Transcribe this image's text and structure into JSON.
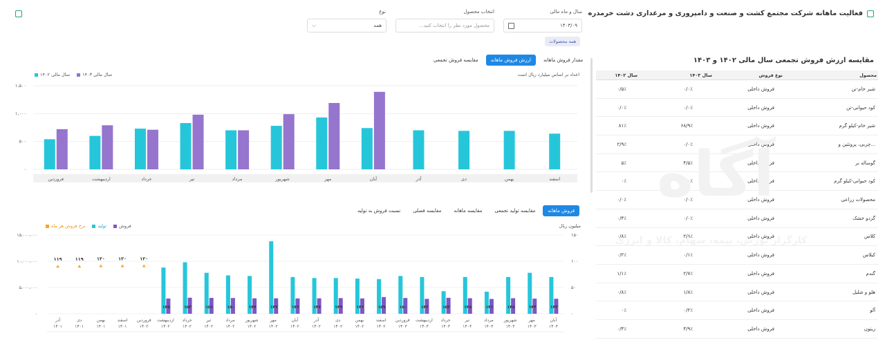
{
  "header": {
    "title": "فعالیت ماهانه شرکت مجتمع کشت و صنعت و دامپروری و مرغداری دشت خرمدره"
  },
  "filters": {
    "year_month_label": "سال و ماه مالی",
    "year_month_value": "۱۴۰۳/۰۹",
    "product_label": "انتخاب محصول",
    "product_placeholder": "محصول مورد نظر را انتخاب کنید...",
    "type_label": "نوع",
    "type_value": "همه",
    "all_products_label": "همه محصولات"
  },
  "top_chart": {
    "tabs": [
      "مقدار فروش ماهانه",
      "ارزش فروش ماهانه",
      "مقایسه فروش تجمعی"
    ],
    "active_tab": 1,
    "subtitle": "اعداد بر اساس میلیارد ریال است",
    "legend": [
      {
        "name": "سال مالی ۱۴۰۳",
        "color": "#9575cd"
      },
      {
        "name": "سال مالی ۱۴۰۲",
        "color": "#26c6da"
      }
    ],
    "y_ticks": [
      "۱،۵۰۰",
      "۱،۰۰۰",
      "۵۰۰",
      "۰"
    ]
  },
  "chart_data": [
    {
      "type": "bar",
      "categories": [
        "اسفند",
        "بهمن",
        "دی",
        "آذر",
        "آبان",
        "مهر",
        "شهریور",
        "مرداد",
        "تیر",
        "خرداد",
        "اردیبهشت",
        "فروردین"
      ],
      "series": [
        {
          "name": "سال مالی ۱۴۰۲",
          "values": [
            640,
            690,
            690,
            700,
            740,
            930,
            780,
            700,
            830,
            730,
            600,
            540
          ]
        },
        {
          "name": "سال مالی ۱۴۰۳",
          "values": [
            null,
            null,
            null,
            null,
            1390,
            1190,
            990,
            700,
            980,
            710,
            790,
            720
          ]
        }
      ],
      "ylim": [
        0,
        1500
      ]
    },
    {
      "type": "bar",
      "categories": [
        "آذر ۱۴۰۱",
        "دی ۱۴۰۱",
        "بهمن ۱۴۰۱",
        "اسفند ۱۴۰۱",
        "فروردین ۱۴۰۲",
        "اردیبهشت ۱۴۰۲",
        "خرداد ۱۴۰۲",
        "تیر ۱۴۰۲",
        "مرداد ۱۴۰۲",
        "شهریور ۱۴۰۲",
        "مهر ۱۴۰۲",
        "آبان ۱۴۰۲",
        "آذر ۱۴۰۲",
        "دی ۱۴۰۲",
        "بهمن ۱۴۰۲",
        "اسفند ۱۴۰۲",
        "فروردین ۱۴۰۳",
        "اردیبهشت ۱۴۰۳",
        "خرداد ۱۴۰۳",
        "تیر ۱۴۰۳",
        "مرداد ۱۴۰۳",
        "شهریور ۱۴۰۳",
        "مهر ۱۴۰۳",
        "آبان ۱۴۰۳"
      ],
      "series": [
        {
          "name": "فروش",
          "values": [
            null,
            null,
            null,
            null,
            null,
            8800000,
            9800000,
            7800000,
            7300000,
            7200000,
            13800000,
            7000000,
            6800000,
            6800000,
            6700000,
            6600000,
            7200000,
            7000000,
            4300000,
            7000000,
            4200000,
            7000000,
            7800000,
            7000000
          ]
        },
        {
          "name": "تولید",
          "values": [
            null,
            null,
            null,
            null,
            null,
            145,
            153,
            151,
            150,
            147,
            147,
            146,
            147,
            149,
            146,
            159,
            150,
            142,
            152,
            148,
            141,
            148,
            144,
            143
          ]
        },
        {
          "name": "نرخ فروش هر ماه",
          "values": [
            119,
            119,
            120,
            120,
            120,
            null,
            null,
            null,
            null,
            null,
            null,
            null,
            null,
            null,
            null,
            null,
            null,
            null,
            null,
            null,
            null,
            null,
            null,
            null
          ]
        }
      ],
      "bar_labels": [
        "",
        "",
        "",
        "",
        "",
        "۱۴۵",
        "۱۵۳",
        "۱۵۱",
        "۱۵۰",
        "۱۴۷",
        "۱۴۷",
        "۱۴۶",
        "۱۴۷",
        "۱۴۹",
        "۱۴۶",
        "۱۵۹",
        "۱۵۰",
        "۱۴۲",
        "۱۵۲",
        "۱۴۸",
        "۱۴۱",
        "۱۴۸",
        "۱۴۴",
        "۱۴۳"
      ],
      "rate_labels": [
        "۱۱۹",
        "۱۱۹",
        "۱۲۰",
        "۱۲۰",
        "۱۲۰"
      ],
      "y_left_ticks": [
        "۱۵،۰۰۰،۰۰۰",
        "۱۰،۰۰۰،۰۰۰",
        "۵،۰۰۰،۰۰۰",
        "۰"
      ],
      "y_right_ticks": [
        "۱۵۰",
        "۱۰۰",
        "۵۰",
        "۰"
      ],
      "ylim_left": [
        0,
        15000000
      ],
      "ylim_right": [
        0,
        150
      ]
    }
  ],
  "bottom_chart": {
    "tabs": [
      "فروش ماهانه",
      "مقایسه تولید تجمعی",
      "مقایسه ماهانه",
      "مقایسه فصلی",
      "نسبت فروش به تولید"
    ],
    "active_tab": 0,
    "unit_label": "میلیون ریال",
    "legend": [
      {
        "name": "فروش",
        "color": "#7e57c2"
      },
      {
        "name": "تولید",
        "color": "#26c6da"
      },
      {
        "name": "نرخ فروش هر ماه",
        "color": "#f5a623"
      }
    ]
  },
  "table": {
    "title": "مقایسه ارزش فروش تجمعی سال مالی ۱۴۰۲ و ۱۴۰۳",
    "headers": [
      "محصول",
      "نوع فروش",
      "سال ۱۴۰۳",
      "سال ۱۴۰۲"
    ],
    "rows": [
      [
        "شیر خام-تن",
        "فروش داخلی",
        "۰/۰٪",
        "۰/۵٪"
      ],
      [
        "کود حیوانی-تن",
        "فروش داخلی",
        "۰/۰٪",
        "۰/۰٪"
      ],
      [
        "شیر خام-کیلو گرم",
        "فروش داخلی",
        "۶۸/۹٪",
        "۸۱٪"
      ],
      [
        "چربی، پروتئین و...",
        "فروش داخلی",
        "۰/۰٪",
        "۲/۹٪"
      ],
      [
        "گوساله نر",
        "فروش داخلی",
        "۴/۵٪",
        "۵٪"
      ],
      [
        "کود حیوانی-کیلو گرم",
        "فروش داخلی",
        "۰٪",
        "۰٪"
      ],
      [
        "محصولات زراعی",
        "فروش داخلی",
        "۰/۰٪",
        "۰/۰٪"
      ],
      [
        "گردو خشک",
        "فروش داخلی",
        "۰/۰٪",
        "۰/۴٪"
      ],
      [
        "کلاس",
        "فروش داخلی",
        "۲/۸٪",
        "۰/۸٪"
      ],
      [
        "کیلاس",
        "فروش داخلی",
        "۰/۱٪",
        "۰/۲٪"
      ],
      [
        "گندم",
        "فروش داخلی",
        "۲/۷٪",
        "۱/۱٪"
      ],
      [
        "هلو و شلیل",
        "فروش داخلی",
        "۱/۸٪",
        "۰/۸٪"
      ],
      [
        "آلو",
        "فروش داخلی",
        "۰/۲٪",
        "۰٪"
      ],
      [
        "زیتون",
        "فروش داخلی",
        "۴/۹٪",
        "۰/۴٪"
      ]
    ]
  },
  "watermark": {
    "brand": "آگاه",
    "tagline": "کارگزار بورس، بیمه، سهام، کالا و انرژی"
  }
}
